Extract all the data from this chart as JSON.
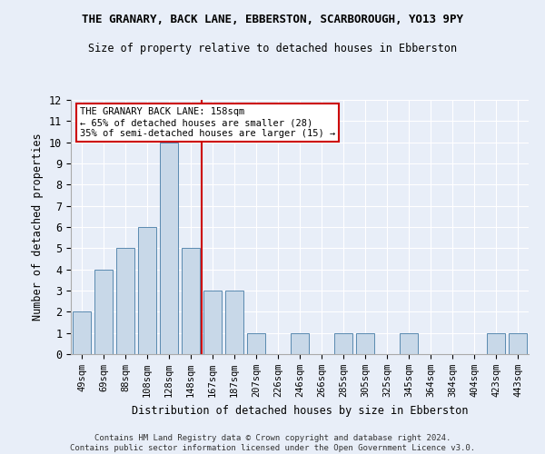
{
  "title": "THE GRANARY, BACK LANE, EBBERSTON, SCARBOROUGH, YO13 9PY",
  "subtitle": "Size of property relative to detached houses in Ebberston",
  "xlabel": "Distribution of detached houses by size in Ebberston",
  "ylabel": "Number of detached properties",
  "categories": [
    "49sqm",
    "69sqm",
    "88sqm",
    "108sqm",
    "128sqm",
    "148sqm",
    "167sqm",
    "187sqm",
    "207sqm",
    "226sqm",
    "246sqm",
    "266sqm",
    "285sqm",
    "305sqm",
    "325sqm",
    "345sqm",
    "364sqm",
    "384sqm",
    "404sqm",
    "423sqm",
    "443sqm"
  ],
  "values": [
    2,
    4,
    5,
    6,
    10,
    5,
    3,
    3,
    1,
    0,
    1,
    0,
    1,
    1,
    0,
    1,
    0,
    0,
    0,
    1,
    1
  ],
  "bar_color": "#c8d8e8",
  "bar_edge_color": "#5a8ab0",
  "annotation_line1": "THE GRANARY BACK LANE: 158sqm",
  "annotation_line2": "← 65% of detached houses are smaller (28)",
  "annotation_line3": "35% of semi-detached houses are larger (15) →",
  "annotation_box_color": "#ffffff",
  "annotation_box_edge": "#cc0000",
  "ref_line_color": "#cc0000",
  "ylim": [
    0,
    12
  ],
  "yticks": [
    0,
    1,
    2,
    3,
    4,
    5,
    6,
    7,
    8,
    9,
    10,
    11,
    12
  ],
  "footer1": "Contains HM Land Registry data © Crown copyright and database right 2024.",
  "footer2": "Contains public sector information licensed under the Open Government Licence v3.0.",
  "bg_color": "#e8eef8"
}
